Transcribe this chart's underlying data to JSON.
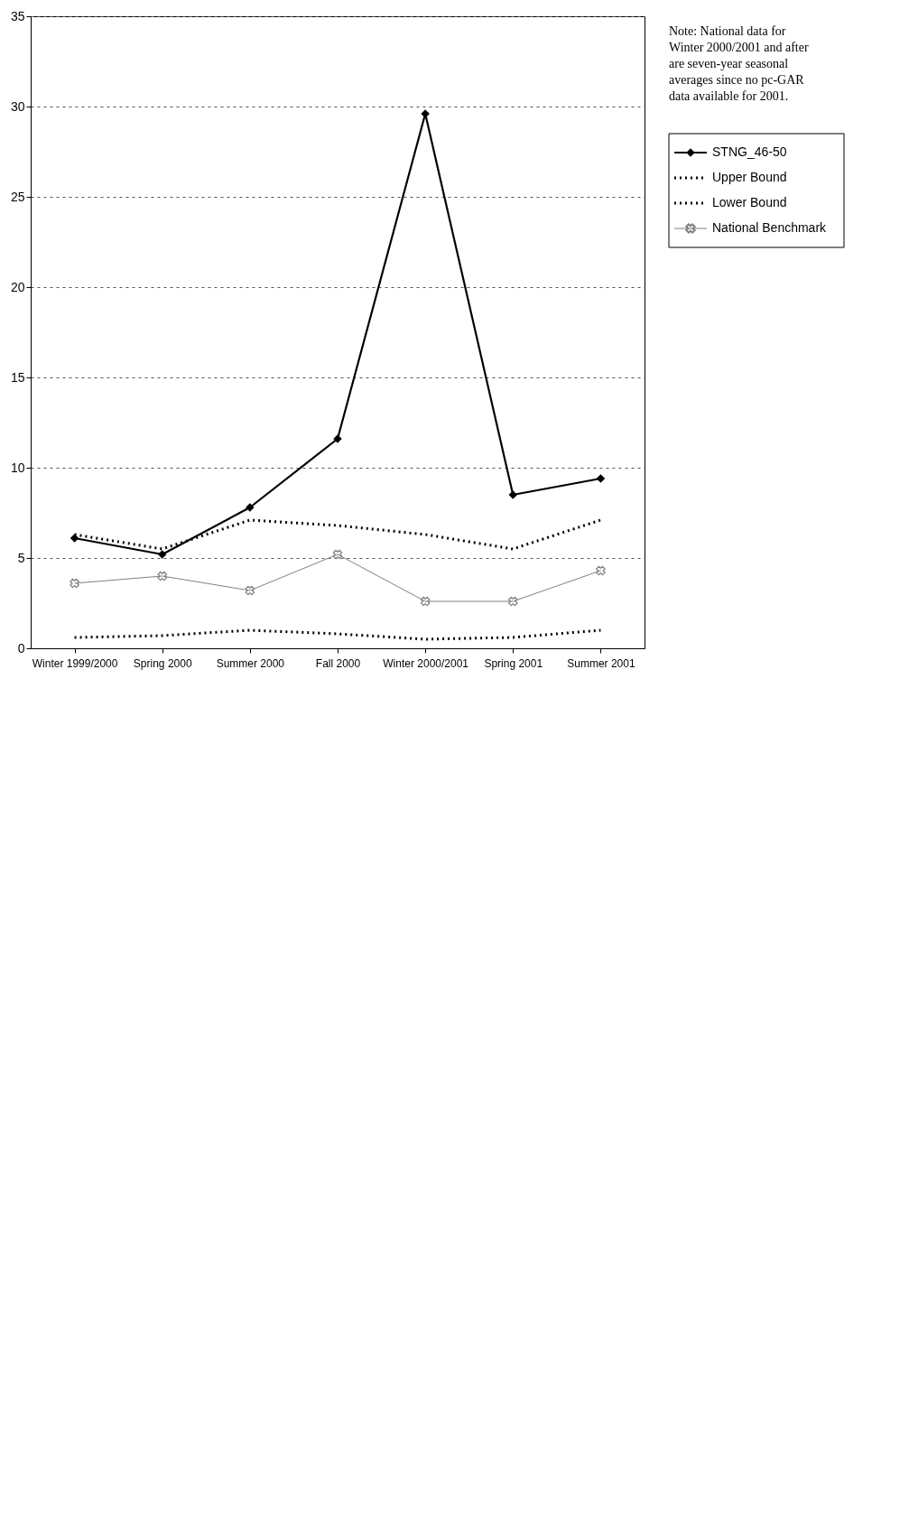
{
  "chart_data": {
    "type": "line",
    "categories": [
      "Winter 1999/2000",
      "Spring 2000",
      "Summer 2000",
      "Fall 2000",
      "Winter 2000/2001",
      "Spring 2001",
      "Summer 2001"
    ],
    "series": [
      {
        "name": "STNG_46-50",
        "color": "#000000",
        "marker": "diamond",
        "line_style": "solid",
        "values": [
          6.1,
          5.2,
          7.8,
          11.6,
          29.6,
          8.5,
          9.4
        ]
      },
      {
        "name": "Upper Bound",
        "color": "#000000",
        "marker": "none",
        "line_style": "dotted",
        "values": [
          6.3,
          5.5,
          7.1,
          6.8,
          6.3,
          5.5,
          7.1
        ]
      },
      {
        "name": "Lower Bound",
        "color": "#000000",
        "marker": "none",
        "line_style": "dotted",
        "values": [
          0.6,
          0.7,
          1.0,
          0.8,
          0.5,
          0.6,
          1.0
        ]
      },
      {
        "name": "National Benchmark",
        "color": "#808080",
        "marker": "cross",
        "line_style": "solid",
        "values": [
          3.6,
          4.0,
          3.2,
          5.2,
          2.6,
          2.6,
          4.3
        ]
      }
    ],
    "ylim": [
      0,
      35
    ],
    "yticks": [
      0,
      5,
      10,
      15,
      20,
      25,
      30,
      35
    ],
    "grid": "y",
    "legend": "right",
    "annotations": [
      "Note: National data for Winter 2000/2001 and after are seven-year seasonal averages since no pc-GAR data available for 2001."
    ]
  }
}
